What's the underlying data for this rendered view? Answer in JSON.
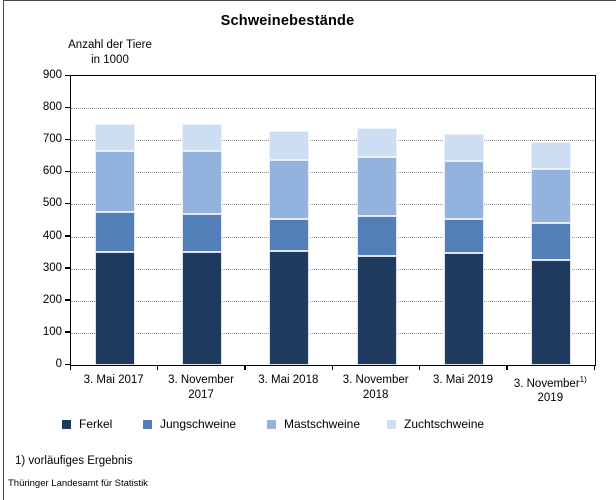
{
  "title": "Schweinebestände",
  "y_axis_title": {
    "line1": "Anzahl der Tiere",
    "line2": "in 1000"
  },
  "footnote": "1) vorläufiges Ergebnis",
  "source": "Thüringer Landesamt für Statistik",
  "colors": {
    "ferkel": "#1e3a5f",
    "jungschweine": "#527fb8",
    "mastschweine": "#94b2de",
    "zuchtschweine": "#cdddf2",
    "gridline": "#8f8f8f",
    "axis": "#000000"
  },
  "chart_data": {
    "type": "bar",
    "stacked": true,
    "title": "Schweinebestände",
    "ylabel": "Anzahl der Tiere in 1000",
    "xlabel": "",
    "ylim": [
      0,
      900
    ],
    "ytick_interval": 100,
    "yticks": [
      0,
      100,
      200,
      300,
      400,
      500,
      600,
      700,
      800,
      900
    ],
    "grid": "horizontal-dotted",
    "legend_position": "bottom",
    "categories": [
      {
        "label": "3. Mai 2017",
        "lines": [
          "3. Mai 2017"
        ],
        "sup": ""
      },
      {
        "label": "3. November 2017",
        "lines": [
          "3. November",
          "2017"
        ],
        "sup": ""
      },
      {
        "label": "3. Mai 2018",
        "lines": [
          "3. Mai 2018"
        ],
        "sup": ""
      },
      {
        "label": "3. November 2018",
        "lines": [
          "3. November",
          "2018"
        ],
        "sup": ""
      },
      {
        "label": "3. Mai 2019",
        "lines": [
          "3. Mai 2019"
        ],
        "sup": ""
      },
      {
        "label": "3. November 2019",
        "lines": [
          "3. November",
          "2019"
        ],
        "sup": "1)"
      }
    ],
    "series": [
      {
        "name": "Ferkel",
        "color": "#1e3a5f",
        "values": [
          351,
          351,
          354,
          339,
          349,
          327
        ]
      },
      {
        "name": "Jungschweine",
        "color": "#527fb8",
        "values": [
          124,
          118,
          101,
          125,
          105,
          116
        ]
      },
      {
        "name": "Mastschweine",
        "color": "#94b2de",
        "values": [
          192,
          198,
          184,
          185,
          181,
          167
        ]
      },
      {
        "name": "Zuchtschweine",
        "color": "#cdddf2",
        "values": [
          85,
          83,
          91,
          89,
          85,
          83
        ]
      }
    ]
  },
  "legend_lefts": [
    62,
    143,
    267,
    387
  ]
}
